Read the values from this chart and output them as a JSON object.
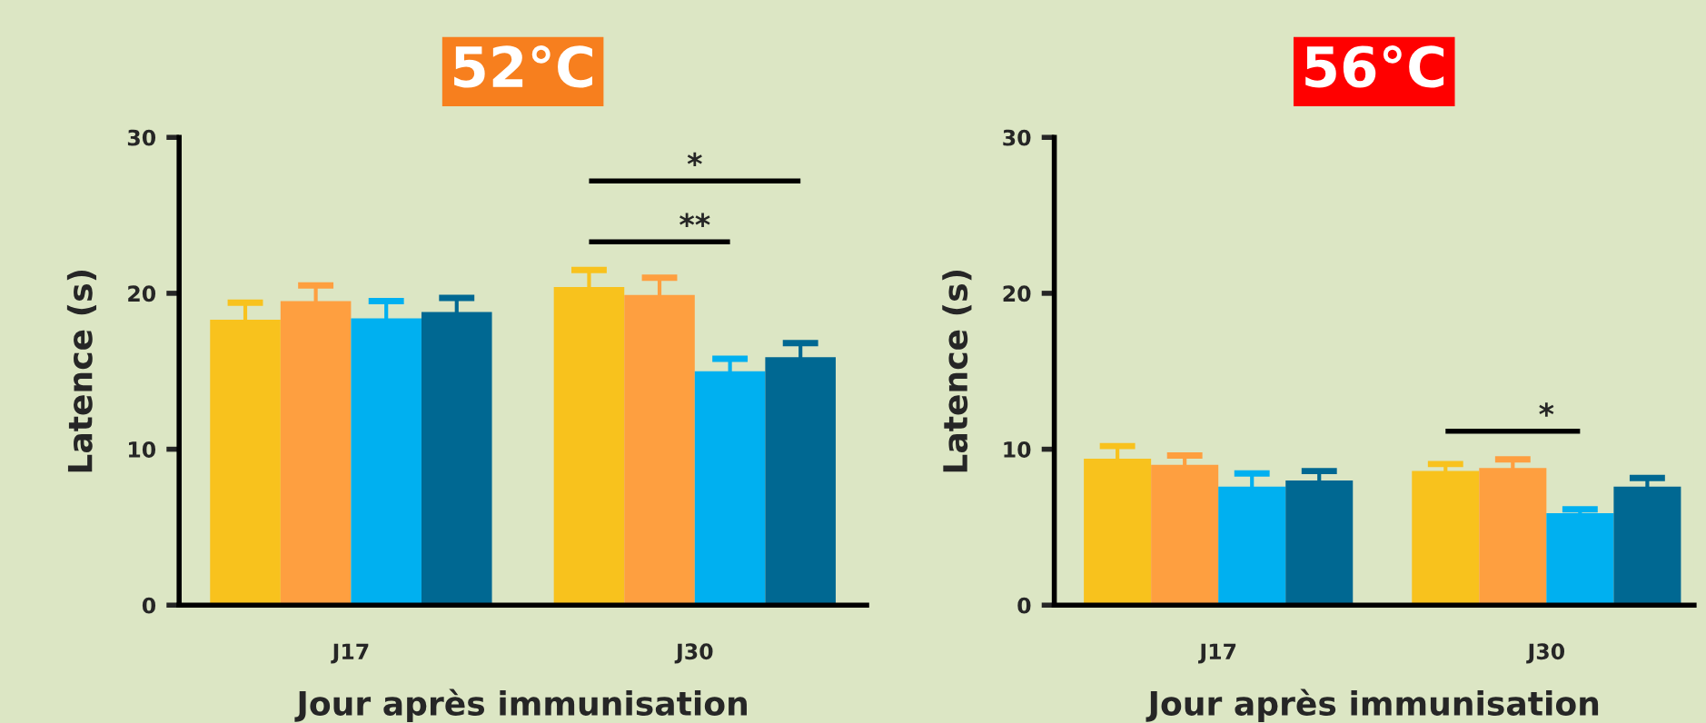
{
  "chart_data": [
    {
      "type": "bar",
      "title": "52°C",
      "xlabel": "Jour après immunisation",
      "ylabel": "Latence (s)",
      "categories": [
        "J17",
        "J30"
      ],
      "ylim": [
        0,
        30
      ],
      "yticks": [
        0,
        10,
        20,
        30
      ],
      "grid": false,
      "legend": false,
      "series": [
        {
          "color": "#f8c21d",
          "values": [
            18.3,
            20.4
          ],
          "errors": [
            1.1,
            1.1
          ]
        },
        {
          "color": "#fe9f40",
          "values": [
            19.5,
            19.9
          ],
          "errors": [
            1.0,
            1.1
          ]
        },
        {
          "color": "#00b0f0",
          "values": [
            18.4,
            15.0
          ],
          "errors": [
            1.1,
            0.8
          ]
        },
        {
          "color": "#006892",
          "values": [
            18.8,
            15.9
          ],
          "errors": [
            0.9,
            0.9
          ]
        }
      ],
      "annotations": [
        "*",
        "**"
      ]
    },
    {
      "type": "bar",
      "title": "56°C",
      "xlabel": "Jour après immunisation",
      "ylabel": "Latence (s)",
      "categories": [
        "J17",
        "J30"
      ],
      "ylim": [
        0,
        30
      ],
      "yticks": [
        0,
        10,
        20,
        30
      ],
      "grid": false,
      "legend": false,
      "series": [
        {
          "color": "#f8c21d",
          "values": [
            9.4,
            8.6
          ],
          "errors": [
            0.8,
            0.45
          ]
        },
        {
          "color": "#fe9f40",
          "values": [
            9.0,
            8.8
          ],
          "errors": [
            0.6,
            0.55
          ]
        },
        {
          "color": "#00b0f0",
          "values": [
            7.6,
            5.9
          ],
          "errors": [
            0.85,
            0.25
          ]
        },
        {
          "color": "#006892",
          "values": [
            8.0,
            7.6
          ],
          "errors": [
            0.6,
            0.55
          ]
        }
      ],
      "annotations": [
        "*"
      ]
    }
  ]
}
